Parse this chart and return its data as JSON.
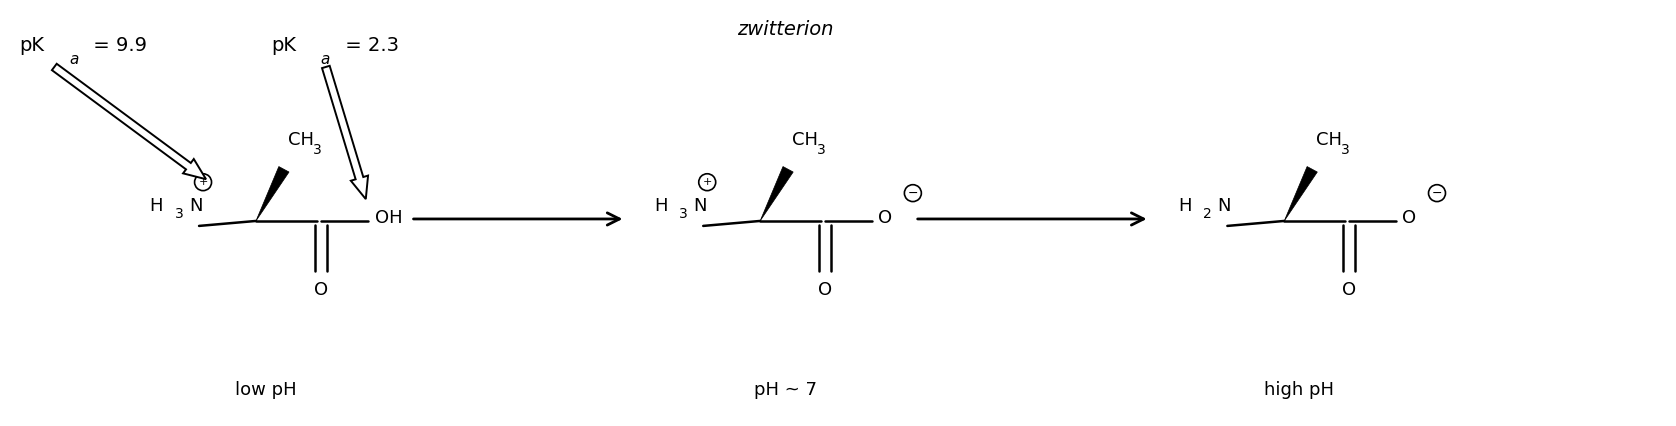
{
  "background_color": "#ffffff",
  "figsize": [
    16.76,
    4.26
  ],
  "dpi": 100,
  "title_zwitterion": "zwitterion",
  "label_low_pH": "low pH",
  "label_mid_pH": "pH ~ 7",
  "label_high_pH": "high pH"
}
